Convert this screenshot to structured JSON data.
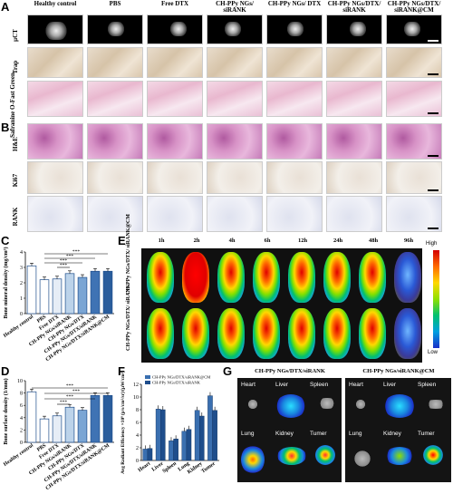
{
  "panel_labels": {
    "A": "A",
    "B": "B",
    "C": "C",
    "D": "D",
    "E": "E",
    "F": "F",
    "G": "G"
  },
  "groups": [
    "Healthy control",
    "PBS",
    "Free DTX",
    "CH-PPy NGs/ siRANK",
    "CH-PPy NGs/ DTX",
    "CH-PPy NGs/DTX/ siRANK",
    "CH-PPy NGs/DTX/ siRANK@CM"
  ],
  "row_labels_A": [
    "μCT",
    "Trap",
    "Safranine O-Fast Green"
  ],
  "row_labels_B": [
    "H&E",
    "Ki67",
    "RANK"
  ],
  "time_points": [
    "1h",
    "2h",
    "4h",
    "6h",
    "12h",
    "24h",
    "48h",
    "96h"
  ],
  "E_rows": [
    "CH-PPy NGs/DTX/ siRANK@CM",
    "CH-PPy NGs/DTX/ siRANK"
  ],
  "E_scale": {
    "high": "High",
    "low": "Low"
  },
  "G_titles": [
    "CH-PPy NGs/DTX/siRANK",
    "CH-PPy NGs/siRANK@CM"
  ],
  "G_organs": [
    "Heart",
    "Liver",
    "Spleen",
    "Lung",
    "Kidney",
    "Tumer"
  ],
  "chart_data": [
    {
      "type": "bar",
      "panel": "C",
      "ylabel": "Bone mineral density (mg/cm³)",
      "ylim": [
        0,
        4
      ],
      "yticks": [
        "0",
        "1",
        "2",
        "3",
        "4"
      ],
      "categories": [
        "Healthy control",
        "PBS",
        "Free DTX",
        "CH-PPy NGs/siRANK",
        "CH-PPy NGs/DTX",
        "CH-PPy NGs/DTX/siRANK",
        "CH-PPy NGs/DTX/siRANK@CM"
      ],
      "values": [
        3.1,
        2.2,
        2.25,
        2.6,
        2.35,
        2.75,
        2.75
      ],
      "colors": [
        "#ffffff",
        "#ffffff",
        "#e6edf6",
        "#bcd3ea",
        "#7aa5d4",
        "#3f73b4",
        "#2a5d9c"
      ],
      "significance": [
        "***",
        "***",
        "***",
        "***"
      ]
    },
    {
      "type": "bar",
      "panel": "D",
      "ylabel": "Bone surface density (1/mm)",
      "ylim": [
        0,
        10
      ],
      "yticks": [
        "0",
        "2",
        "4",
        "6",
        "8",
        "10"
      ],
      "categories": [
        "Healthy control",
        "PBS",
        "Free DTX",
        "CH-PPy NGs/siRANK",
        "CH-PPy NGs/DTX",
        "CH-PPy NGs/DTX/siRANK",
        "CH-PPy NGs/DTX/siRANK@CM"
      ],
      "values": [
        8.2,
        3.8,
        4.3,
        5.7,
        5.2,
        7.6,
        7.6
      ],
      "colors": [
        "#ffffff",
        "#ffffff",
        "#e6edf6",
        "#bcd3ea",
        "#7aa5d4",
        "#3f73b4",
        "#2a5d9c"
      ],
      "significance": [
        "***",
        "***",
        "***",
        "***"
      ]
    },
    {
      "type": "bar",
      "panel": "F",
      "ylabel": "Avg Radiant Efficiency ×10⁸ (p/s/cm²/sr)/(μW/cm²)",
      "ylim": [
        0,
        12
      ],
      "yticks": [
        "0",
        "2",
        "4",
        "6",
        "8",
        "10",
        "12"
      ],
      "categories": [
        "Heart",
        "Liver",
        "Spleen",
        "Lung",
        "Kidney",
        "Tumer"
      ],
      "series": [
        {
          "name": "CH-PPy NGs/DTX/siRANK@CM",
          "values": [
            1.8,
            8.1,
            3.1,
            4.6,
            7.9,
            10.2
          ],
          "color": "#3a6fb0"
        },
        {
          "name": "CH-PPy NGs/DTX/siRANK",
          "values": [
            1.9,
            8.0,
            3.4,
            4.9,
            7.0,
            7.9
          ],
          "color": "#1f4e8c"
        }
      ]
    }
  ]
}
